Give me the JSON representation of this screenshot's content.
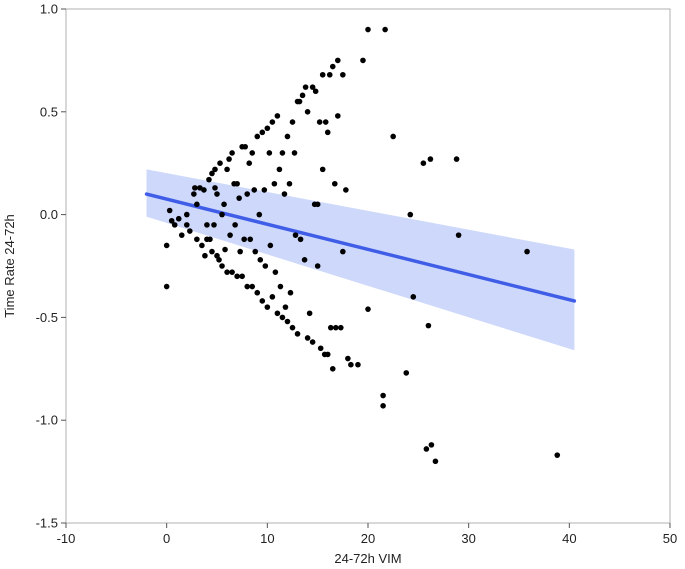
{
  "chart_data": {
    "type": "scatter",
    "title": "",
    "xlabel": "24-72h VIM",
    "ylabel": "Time Rate 24-72h",
    "xlim": [
      -10,
      50
    ],
    "ylim": [
      -1.5,
      1.0
    ],
    "x_ticks": [
      -10,
      0,
      10,
      20,
      30,
      40,
      50
    ],
    "y_ticks": [
      1.0,
      0.5,
      0.0,
      -0.5,
      -1.0,
      -1.5
    ],
    "x_tick_labels": [
      "-10",
      "0",
      "10",
      "20",
      "30",
      "40",
      "50"
    ],
    "y_tick_labels": [
      "1.0",
      "0.5",
      "0.0",
      "-0.5",
      "-1.0",
      "-1.5"
    ],
    "grid": false,
    "points": [
      [
        0.0,
        -0.35
      ],
      [
        0.0,
        -0.15
      ],
      [
        0.3,
        0.02
      ],
      [
        0.5,
        -0.03
      ],
      [
        0.8,
        -0.05
      ],
      [
        1.2,
        -0.02
      ],
      [
        1.5,
        -0.1
      ],
      [
        2.0,
        0.0
      ],
      [
        2.0,
        -0.05
      ],
      [
        2.3,
        -0.08
      ],
      [
        2.7,
        0.1
      ],
      [
        2.8,
        0.13
      ],
      [
        3.0,
        0.05
      ],
      [
        3.0,
        -0.12
      ],
      [
        3.3,
        0.13
      ],
      [
        3.5,
        -0.15
      ],
      [
        3.7,
        0.12
      ],
      [
        3.8,
        -0.2
      ],
      [
        4.0,
        -0.05
      ],
      [
        4.0,
        -0.12
      ],
      [
        4.2,
        0.17
      ],
      [
        4.3,
        -0.12
      ],
      [
        4.5,
        0.2
      ],
      [
        4.5,
        -0.18
      ],
      [
        4.7,
        -0.05
      ],
      [
        4.8,
        0.22
      ],
      [
        4.8,
        0.13
      ],
      [
        5.0,
        -0.2
      ],
      [
        5.0,
        0.1
      ],
      [
        5.2,
        -0.22
      ],
      [
        5.3,
        0.25
      ],
      [
        5.5,
        -0.25
      ],
      [
        5.5,
        0.0
      ],
      [
        5.7,
        0.05
      ],
      [
        5.8,
        -0.17
      ],
      [
        6.0,
        0.22
      ],
      [
        6.0,
        -0.28
      ],
      [
        6.2,
        0.27
      ],
      [
        6.3,
        -0.1
      ],
      [
        6.5,
        0.3
      ],
      [
        6.5,
        -0.28
      ],
      [
        6.7,
        0.15
      ],
      [
        6.8,
        -0.05
      ],
      [
        7.0,
        -0.3
      ],
      [
        7.0,
        0.15
      ],
      [
        7.2,
        0.08
      ],
      [
        7.3,
        -0.18
      ],
      [
        7.5,
        0.33
      ],
      [
        7.5,
        -0.3
      ],
      [
        7.7,
        -0.12
      ],
      [
        7.8,
        0.33
      ],
      [
        8.0,
        -0.35
      ],
      [
        8.0,
        0.1
      ],
      [
        8.2,
        0.25
      ],
      [
        8.3,
        -0.12
      ],
      [
        8.5,
        0.3
      ],
      [
        8.5,
        -0.35
      ],
      [
        8.7,
        0.12
      ],
      [
        8.8,
        -0.18
      ],
      [
        9.0,
        0.38
      ],
      [
        9.0,
        -0.38
      ],
      [
        9.2,
        0.0
      ],
      [
        9.3,
        -0.22
      ],
      [
        9.5,
        0.4
      ],
      [
        9.5,
        -0.42
      ],
      [
        9.7,
        0.12
      ],
      [
        9.8,
        -0.25
      ],
      [
        10.0,
        0.42
      ],
      [
        10.0,
        -0.45
      ],
      [
        10.2,
        0.3
      ],
      [
        10.3,
        -0.15
      ],
      [
        10.5,
        0.45
      ],
      [
        10.5,
        -0.4
      ],
      [
        10.7,
        0.15
      ],
      [
        10.8,
        -0.28
      ],
      [
        11.0,
        0.48
      ],
      [
        11.0,
        -0.48
      ],
      [
        11.2,
        0.22
      ],
      [
        11.3,
        -0.35
      ],
      [
        11.5,
        0.3
      ],
      [
        11.5,
        -0.5
      ],
      [
        11.7,
        0.1
      ],
      [
        11.8,
        -0.45
      ],
      [
        12.0,
        0.38
      ],
      [
        12.0,
        -0.52
      ],
      [
        12.2,
        0.15
      ],
      [
        12.3,
        -0.38
      ],
      [
        12.5,
        0.45
      ],
      [
        12.5,
        -0.55
      ],
      [
        12.7,
        0.3
      ],
      [
        12.8,
        -0.1
      ],
      [
        13.0,
        0.55
      ],
      [
        13.0,
        -0.58
      ],
      [
        13.2,
        0.55
      ],
      [
        13.3,
        -0.12
      ],
      [
        13.5,
        0.58
      ],
      [
        13.7,
        -0.22
      ],
      [
        13.8,
        0.62
      ],
      [
        14.0,
        -0.6
      ],
      [
        14.0,
        0.5
      ],
      [
        14.2,
        -0.48
      ],
      [
        14.5,
        0.62
      ],
      [
        14.5,
        -0.62
      ],
      [
        14.7,
        0.05
      ],
      [
        14.8,
        0.6
      ],
      [
        15.0,
        -0.25
      ],
      [
        15.0,
        0.05
      ],
      [
        15.2,
        0.45
      ],
      [
        15.3,
        -0.65
      ],
      [
        15.5,
        0.68
      ],
      [
        15.5,
        0.22
      ],
      [
        15.7,
        -0.68
      ],
      [
        15.8,
        0.45
      ],
      [
        16.0,
        0.4
      ],
      [
        16.0,
        -0.68
      ],
      [
        16.2,
        0.68
      ],
      [
        16.3,
        -0.55
      ],
      [
        16.5,
        0.72
      ],
      [
        16.5,
        -0.75
      ],
      [
        16.7,
        0.15
      ],
      [
        16.8,
        -0.55
      ],
      [
        17.0,
        0.75
      ],
      [
        17.0,
        0.48
      ],
      [
        17.3,
        -0.55
      ],
      [
        17.5,
        0.68
      ],
      [
        17.5,
        -0.18
      ],
      [
        17.8,
        0.12
      ],
      [
        18.0,
        -0.7
      ],
      [
        18.3,
        -0.73
      ],
      [
        19.0,
        -0.73
      ],
      [
        19.5,
        0.75
      ],
      [
        20.0,
        0.9
      ],
      [
        20.0,
        -0.46
      ],
      [
        21.5,
        -0.88
      ],
      [
        21.5,
        -0.93
      ],
      [
        21.7,
        0.9
      ],
      [
        22.5,
        0.38
      ],
      [
        23.8,
        -0.77
      ],
      [
        24.2,
        0.0
      ],
      [
        24.5,
        -0.4
      ],
      [
        25.5,
        0.25
      ],
      [
        25.8,
        -1.14
      ],
      [
        26.0,
        -0.54
      ],
      [
        26.2,
        0.27
      ],
      [
        26.3,
        -1.12
      ],
      [
        26.7,
        -1.2
      ],
      [
        28.8,
        0.27
      ],
      [
        29.0,
        -0.1
      ],
      [
        35.8,
        -0.18
      ],
      [
        38.8,
        -1.17
      ]
    ],
    "fit_line": {
      "x": [
        -2,
        40.5
      ],
      "y": [
        0.1,
        -0.42
      ],
      "ci_upper": [
        0.22,
        -0.17
      ],
      "ci_lower": [
        -0.01,
        -0.66
      ],
      "color": "#3f5de6",
      "band_color": "#c8d4fb"
    },
    "point_color": "#000000"
  }
}
